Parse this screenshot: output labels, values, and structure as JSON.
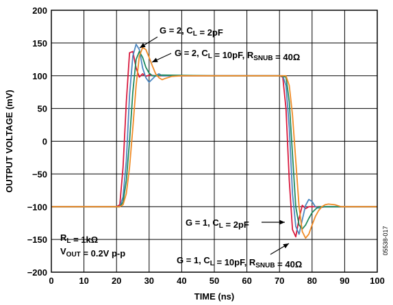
{
  "chart_data": {
    "type": "line",
    "xlabel": "TIME (ns)",
    "ylabel": "OUTPUT VOLTAGE (mV)",
    "xlim": [
      0,
      100
    ],
    "ylim": [
      -200,
      200
    ],
    "xticks": [
      0,
      10,
      20,
      30,
      40,
      50,
      60,
      70,
      80,
      90,
      100
    ],
    "yticks": [
      -200,
      -150,
      -100,
      -50,
      0,
      50,
      100,
      150,
      200
    ],
    "x_tick_labels": [
      "0",
      "10",
      "20",
      "30",
      "40",
      "50",
      "60",
      "70",
      "80",
      "90",
      "100"
    ],
    "y_tick_labels": [
      "−200",
      "−150",
      "−100",
      "−50",
      "0",
      "50",
      "100",
      "150",
      "200"
    ],
    "grid": true,
    "series": [
      {
        "color": "#d8183c",
        "points": [
          [
            0,
            -100
          ],
          [
            10,
            -100
          ],
          [
            20,
            -100
          ],
          [
            21,
            -97
          ],
          [
            22,
            -40
          ],
          [
            23,
            60
          ],
          [
            24,
            135
          ],
          [
            25,
            137
          ],
          [
            26,
            112
          ],
          [
            27,
            98
          ],
          [
            28,
            103
          ],
          [
            29,
            99
          ],
          [
            30,
            101
          ],
          [
            32,
            100
          ],
          [
            50,
            100
          ],
          [
            70,
            100
          ],
          [
            71,
            98
          ],
          [
            72,
            50
          ],
          [
            73,
            -60
          ],
          [
            74,
            -135
          ],
          [
            75,
            -146
          ],
          [
            76,
            -118
          ],
          [
            77,
            -98
          ],
          [
            78,
            -103
          ],
          [
            79,
            -100
          ],
          [
            82,
            -100
          ],
          [
            100,
            -100
          ]
        ]
      },
      {
        "color": "#4a86c0",
        "points": [
          [
            0,
            -100
          ],
          [
            10,
            -100
          ],
          [
            21,
            -100
          ],
          [
            22,
            -85
          ],
          [
            23,
            -30
          ],
          [
            24,
            70
          ],
          [
            25,
            130
          ],
          [
            26,
            148
          ],
          [
            27,
            140
          ],
          [
            28,
            112
          ],
          [
            29,
            97
          ],
          [
            30,
            90
          ],
          [
            31,
            95
          ],
          [
            32,
            100
          ],
          [
            33,
            103
          ],
          [
            34,
            100
          ],
          [
            50,
            100
          ],
          [
            70,
            100
          ],
          [
            71,
            100
          ],
          [
            72,
            85
          ],
          [
            73,
            20
          ],
          [
            74,
            -80
          ],
          [
            75,
            -130
          ],
          [
            76,
            -142
          ],
          [
            77,
            -120
          ],
          [
            78,
            -98
          ],
          [
            79,
            -89
          ],
          [
            80,
            -92
          ],
          [
            81,
            -100
          ],
          [
            82,
            -102
          ],
          [
            84,
            -100
          ],
          [
            100,
            -100
          ]
        ]
      },
      {
        "color": "#1f8a5e",
        "points": [
          [
            0,
            -100
          ],
          [
            10,
            -100
          ],
          [
            21,
            -100
          ],
          [
            22,
            -93
          ],
          [
            23,
            -60
          ],
          [
            24,
            0
          ],
          [
            25,
            75
          ],
          [
            26,
            125
          ],
          [
            27,
            137
          ],
          [
            28,
            128
          ],
          [
            29,
            113
          ],
          [
            30,
            104
          ],
          [
            31,
            100
          ],
          [
            32,
            100
          ],
          [
            34,
            101
          ],
          [
            50,
            100
          ],
          [
            70,
            100
          ],
          [
            72,
            98
          ],
          [
            73,
            60
          ],
          [
            74,
            -20
          ],
          [
            75,
            -100
          ],
          [
            76,
            -128
          ],
          [
            77,
            -134
          ],
          [
            78,
            -128
          ],
          [
            79,
            -118
          ],
          [
            80,
            -109
          ],
          [
            81,
            -104
          ],
          [
            82,
            -100
          ],
          [
            84,
            -100
          ],
          [
            100,
            -100
          ]
        ]
      },
      {
        "color": "#f08a24",
        "points": [
          [
            0,
            -100
          ],
          [
            10,
            -100
          ],
          [
            21,
            -100
          ],
          [
            22,
            -97
          ],
          [
            23,
            -80
          ],
          [
            24,
            -40
          ],
          [
            25,
            20
          ],
          [
            26,
            85
          ],
          [
            27,
            130
          ],
          [
            28,
            143
          ],
          [
            29,
            140
          ],
          [
            30,
            128
          ],
          [
            31,
            115
          ],
          [
            32,
            103
          ],
          [
            33,
            97
          ],
          [
            34,
            94
          ],
          [
            35,
            96
          ],
          [
            37,
            99
          ],
          [
            40,
            100
          ],
          [
            50,
            100
          ],
          [
            70,
            100
          ],
          [
            72,
            100
          ],
          [
            73,
            85
          ],
          [
            74,
            40
          ],
          [
            75,
            -30
          ],
          [
            76,
            -100
          ],
          [
            77,
            -138
          ],
          [
            78,
            -148
          ],
          [
            79,
            -142
          ],
          [
            80,
            -128
          ],
          [
            81,
            -115
          ],
          [
            82,
            -106
          ],
          [
            83,
            -100
          ],
          [
            84,
            -97
          ],
          [
            85,
            -96
          ],
          [
            87,
            -97
          ],
          [
            89,
            -100
          ],
          [
            100,
            -100
          ]
        ]
      }
    ],
    "annotations": [
      {
        "parts": [
          {
            "t": "G = 2, C"
          },
          {
            "t": "L",
            "sub": true
          },
          {
            "t": " = 2pF"
          }
        ]
      },
      {
        "parts": [
          {
            "t": "G = 2, C"
          },
          {
            "t": "L",
            "sub": true
          },
          {
            "t": " = 10pF, R"
          },
          {
            "t": "SNUB",
            "sub": true
          },
          {
            "t": " = 40Ω"
          }
        ]
      },
      {
        "parts": [
          {
            "t": "G = 1, C"
          },
          {
            "t": "L",
            "sub": true
          },
          {
            "t": " = 2pF"
          }
        ]
      },
      {
        "parts": [
          {
            "t": "G = 1, C"
          },
          {
            "t": "L",
            "sub": true
          },
          {
            "t": " = 10pF, R"
          },
          {
            "t": "SNUB",
            "sub": true
          },
          {
            "t": " = 40Ω"
          }
        ]
      },
      {
        "parts": [
          {
            "t": "R"
          },
          {
            "t": "L",
            "sub": true
          },
          {
            "t": " = 1kΩ"
          }
        ]
      },
      {
        "parts": [
          {
            "t": "V"
          },
          {
            "t": "OUT",
            "sub": true
          },
          {
            "t": " = 0.2V p-p"
          }
        ]
      }
    ],
    "figure_id": "05538-017"
  }
}
